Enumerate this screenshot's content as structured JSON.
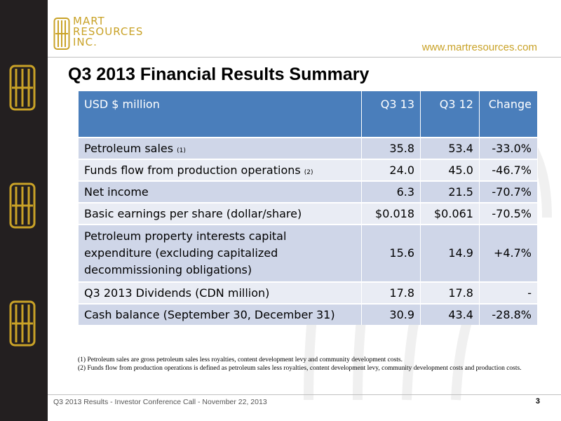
{
  "brand": {
    "line1": "MART",
    "line2": "RESOURCES",
    "line3": "INC.",
    "url": "www.martresources.com",
    "gold": "#c9a227"
  },
  "slide": {
    "title": "Q3 2013 Financial Results Summary",
    "footer": "Q3 2013  Results - Investor Conference Call - November 22, 2013",
    "page_number": "3"
  },
  "table": {
    "headers": [
      "USD $ million",
      "Q3 13",
      "Q3 12",
      "Change"
    ],
    "header_color": "#4a7ebb",
    "rows": [
      {
        "label": "Petroleum sales",
        "note": "(1)",
        "q3_13": "35.8",
        "q3_12": "53.4",
        "change": "-33.0%"
      },
      {
        "label": "Funds flow from production operations",
        "note": "(2)",
        "q3_13": "24.0",
        "q3_12": "45.0",
        "change": "-46.7%"
      },
      {
        "label": "Net income",
        "note": "",
        "q3_13": "6.3",
        "q3_12": "21.5",
        "change": "-70.7%"
      },
      {
        "label": "Basic earnings per share (dollar/share)",
        "note": "",
        "q3_13": "$0.018",
        "q3_12": "$0.061",
        "change": "-70.5%"
      },
      {
        "label_lines": [
          "Petroleum property interests capital",
          "expenditure (excluding capitalized",
          "decommissioning obligations)"
        ],
        "q3_13": "15.6",
        "q3_12": "14.9",
        "change": "+4.7%"
      },
      {
        "label": "Q3 2013 Dividends (CDN million)",
        "note": "",
        "q3_13": "17.8",
        "q3_12": "17.8",
        "change": "-"
      },
      {
        "label": "Cash balance (September 30, December 31)",
        "note": "",
        "q3_13": "30.9",
        "q3_12": "43.4",
        "change": "-28.8%"
      }
    ]
  },
  "footnotes": {
    "n1": "(1)  Petroleum sales are gross petroleum sales less royalties, content development levy and community development costs.",
    "n2": "(2)  Funds flow from production operations  is defined as petroleum sales less royalties, content development levy, community development costs and production costs."
  }
}
